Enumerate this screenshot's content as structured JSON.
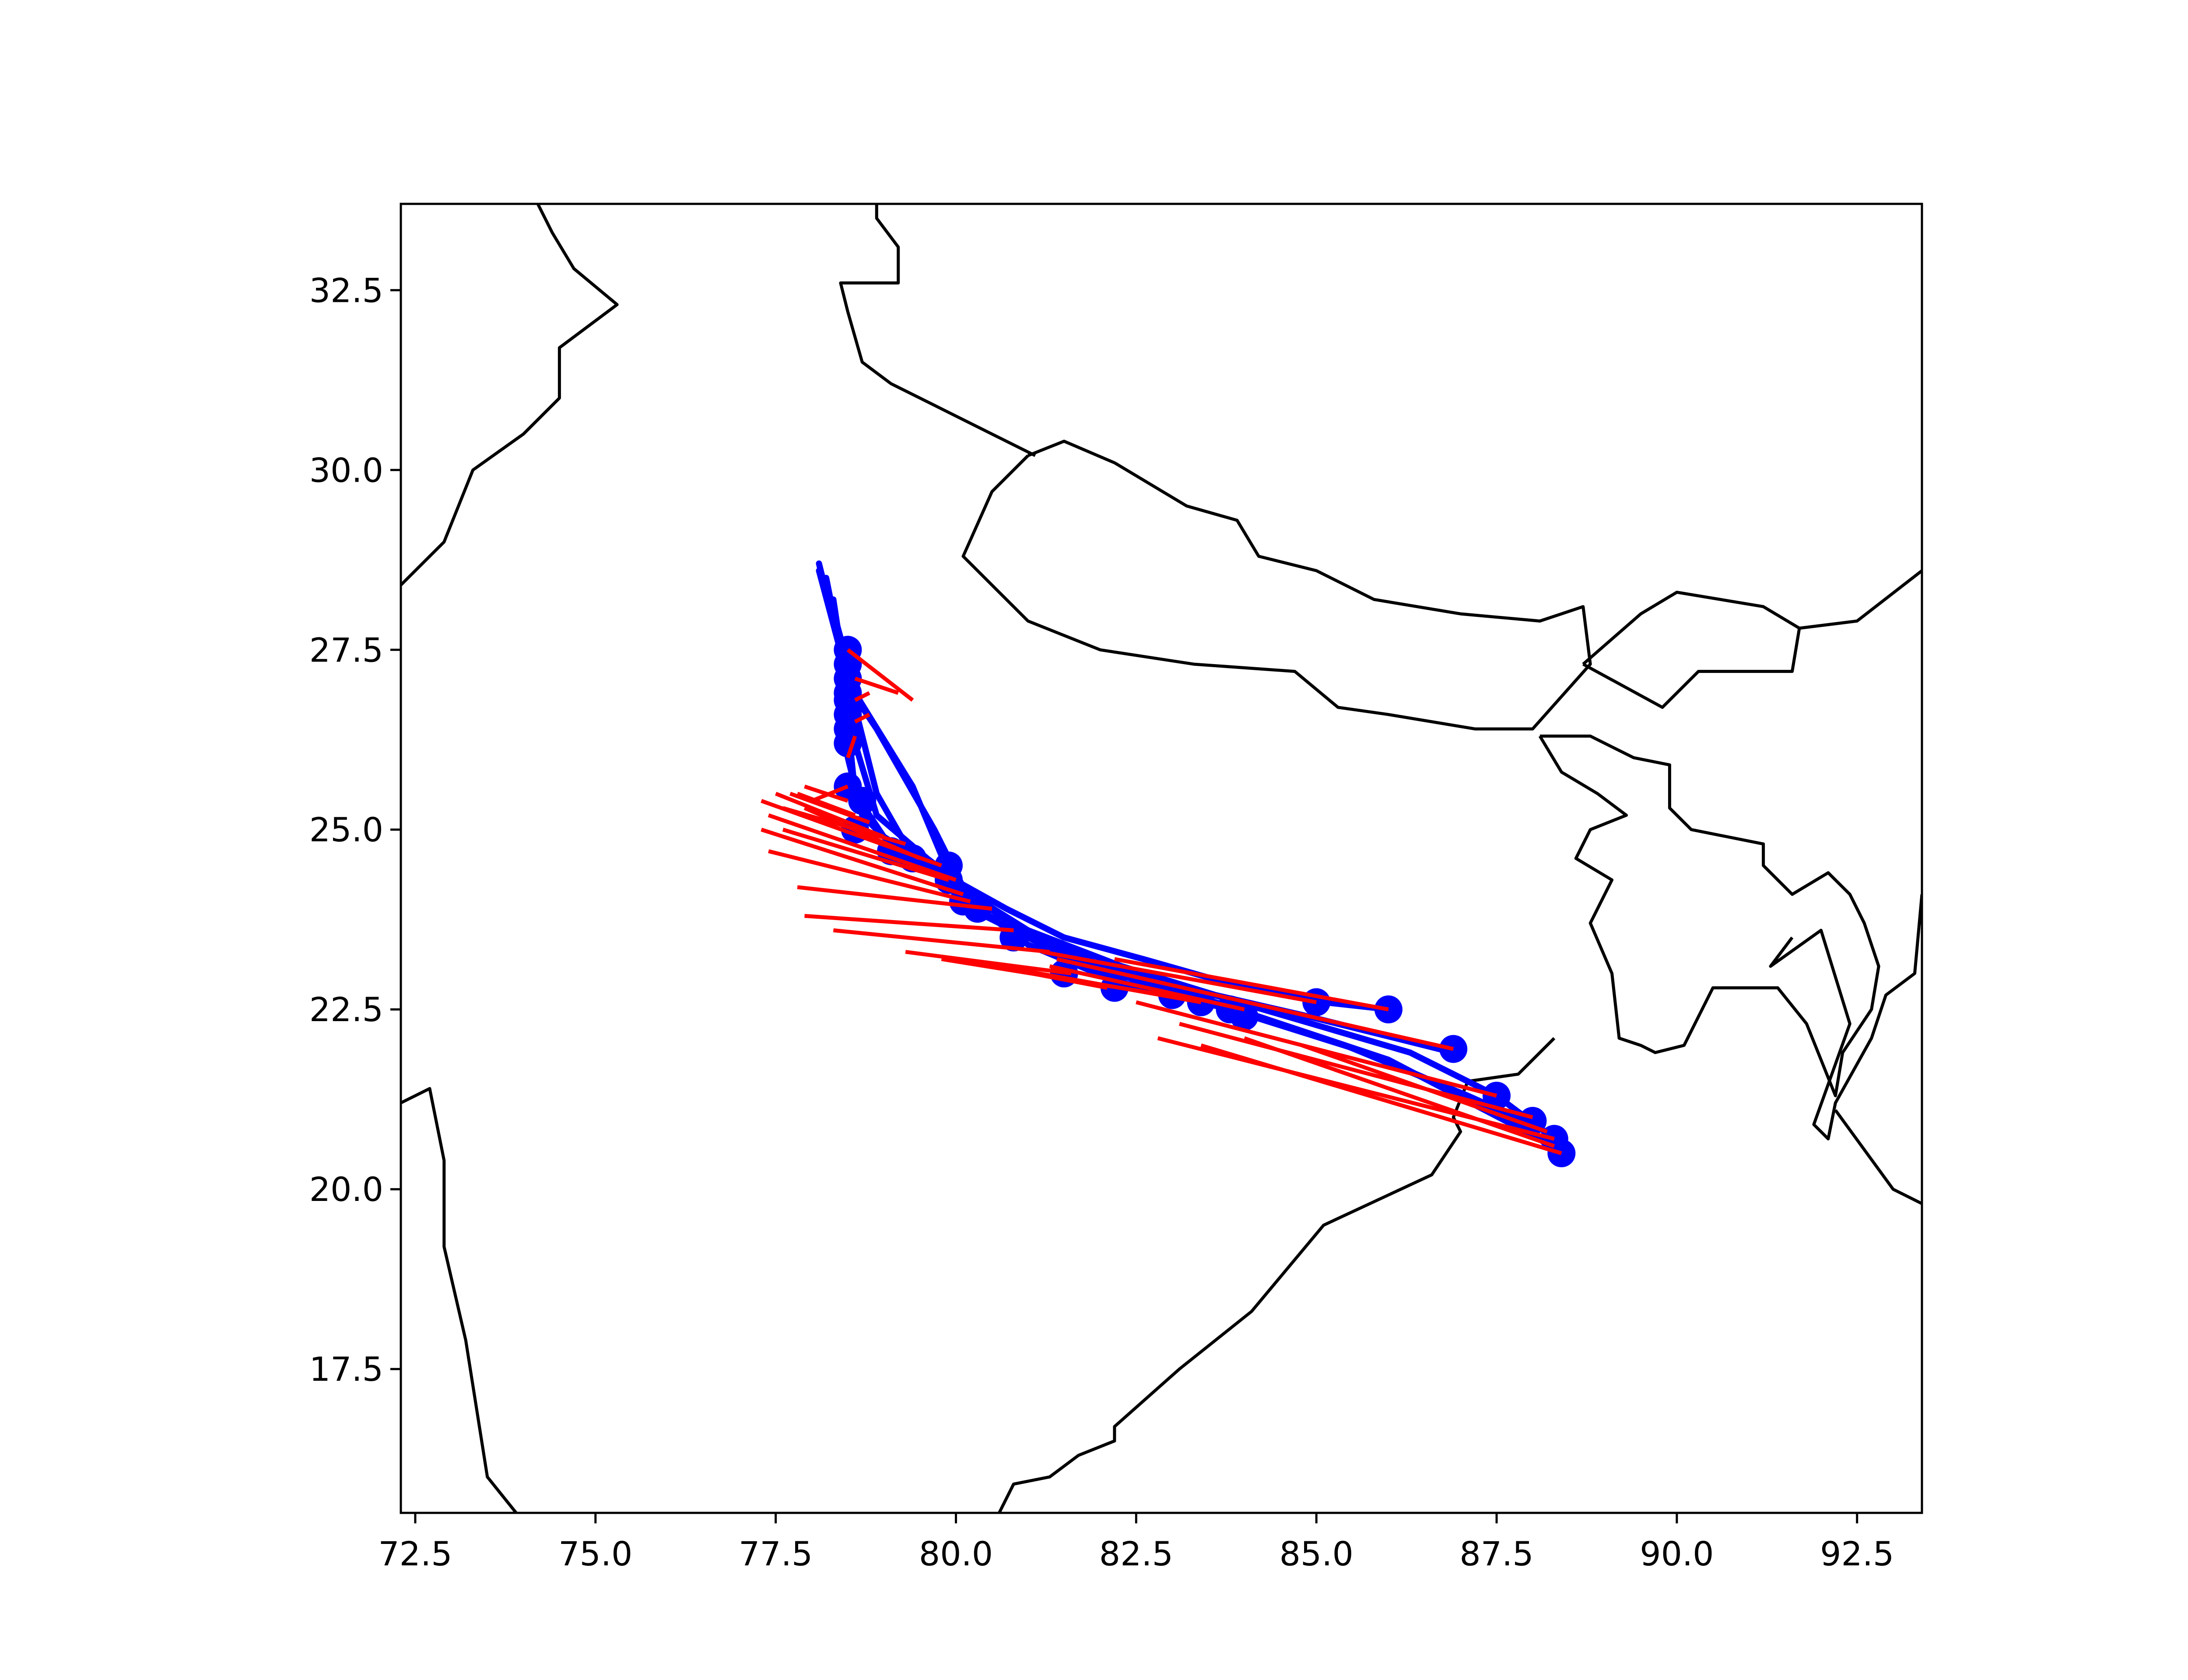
{
  "chart_data": {
    "type": "map-trajectories",
    "title": "",
    "xlabel": "",
    "ylabel": "",
    "xlim": [
      72.3,
      93.4
    ],
    "ylim": [
      15.5,
      33.7
    ],
    "grid": false,
    "legend": "none",
    "x_ticks": [
      "72.5",
      "75.0",
      "77.5",
      "80.0",
      "82.5",
      "85.0",
      "87.5",
      "90.0",
      "92.5"
    ],
    "x_tick_values": [
      72.5,
      75.0,
      77.5,
      80.0,
      82.5,
      85.0,
      87.5,
      90.0,
      92.5
    ],
    "y_ticks": [
      "17.5",
      "20.0",
      "22.5",
      "25.0",
      "27.5",
      "30.0",
      "32.5"
    ],
    "y_tick_values": [
      17.5,
      20.0,
      22.5,
      25.0,
      27.5,
      30.0,
      32.5
    ],
    "colors": {
      "frame": "#000000",
      "boundary": "#000000",
      "track": "#0000ff",
      "track_point": "#0000ff",
      "forecast": "#ff0000"
    },
    "boundaries": [
      [
        [
          74.2,
          33.7
        ],
        [
          74.4,
          33.3
        ],
        [
          74.7,
          32.8
        ],
        [
          75.3,
          32.3
        ],
        [
          74.5,
          31.7
        ],
        [
          74.5,
          31.0
        ],
        [
          74.0,
          30.5
        ],
        [
          73.3,
          30.0
        ],
        [
          72.9,
          29.0
        ],
        [
          72.3,
          28.4
        ]
      ],
      [
        [
          78.9,
          33.7
        ],
        [
          78.9,
          33.5
        ],
        [
          79.2,
          33.1
        ],
        [
          79.2,
          32.6
        ],
        [
          78.4,
          32.6
        ],
        [
          78.5,
          32.2
        ],
        [
          78.7,
          31.5
        ],
        [
          79.1,
          31.2
        ],
        [
          79.7,
          30.9
        ],
        [
          80.5,
          30.5
        ],
        [
          81.1,
          30.2
        ]
      ],
      [
        [
          81.0,
          30.2
        ],
        [
          81.5,
          30.4
        ],
        [
          82.2,
          30.1
        ],
        [
          83.2,
          29.5
        ],
        [
          83.9,
          29.3
        ],
        [
          84.2,
          28.8
        ],
        [
          85.0,
          28.6
        ],
        [
          85.8,
          28.2
        ],
        [
          87.0,
          28.0
        ],
        [
          88.1,
          27.9
        ],
        [
          88.7,
          28.1
        ],
        [
          88.8,
          27.3
        ],
        [
          88.0,
          26.4
        ],
        [
          87.2,
          26.4
        ],
        [
          86.0,
          26.6
        ],
        [
          85.3,
          26.7
        ],
        [
          84.7,
          27.2
        ],
        [
          83.3,
          27.3
        ],
        [
          82.0,
          27.5
        ],
        [
          81.0,
          27.9
        ],
        [
          80.1,
          28.8
        ],
        [
          80.5,
          29.7
        ],
        [
          81.0,
          30.2
        ]
      ],
      [
        [
          88.7,
          27.3
        ],
        [
          89.5,
          28.0
        ],
        [
          90.0,
          28.3
        ],
        [
          91.2,
          28.1
        ],
        [
          91.7,
          27.8
        ],
        [
          91.6,
          27.2
        ],
        [
          90.3,
          27.2
        ],
        [
          89.8,
          26.7
        ],
        [
          88.7,
          27.3
        ]
      ],
      [
        [
          91.7,
          27.8
        ],
        [
          92.5,
          27.9
        ],
        [
          93.4,
          28.6
        ]
      ],
      [
        [
          88.1,
          26.3
        ],
        [
          88.4,
          25.8
        ],
        [
          88.9,
          25.5
        ],
        [
          89.3,
          25.2
        ],
        [
          88.8,
          25.0
        ],
        [
          88.6,
          24.6
        ],
        [
          89.1,
          24.3
        ],
        [
          88.8,
          23.7
        ],
        [
          89.1,
          23.0
        ],
        [
          89.2,
          22.1
        ],
        [
          89.5,
          22.0
        ],
        [
          89.7,
          21.9
        ],
        [
          90.1,
          22.0
        ],
        [
          90.5,
          22.8
        ],
        [
          91.4,
          22.8
        ],
        [
          91.8,
          22.3
        ],
        [
          92.2,
          21.3
        ],
        [
          92.3,
          21.9
        ],
        [
          92.7,
          22.5
        ],
        [
          92.8,
          23.1
        ],
        [
          92.6,
          23.7
        ],
        [
          92.4,
          24.1
        ],
        [
          92.1,
          24.4
        ],
        [
          91.6,
          24.1
        ],
        [
          91.2,
          24.5
        ],
        [
          91.2,
          24.8
        ],
        [
          90.2,
          25.0
        ],
        [
          89.9,
          25.3
        ],
        [
          89.9,
          25.9
        ],
        [
          89.4,
          26.0
        ],
        [
          88.8,
          26.3
        ],
        [
          88.1,
          26.3
        ]
      ],
      [
        [
          93.4,
          24.1
        ],
        [
          93.3,
          23.0
        ],
        [
          92.9,
          22.7
        ],
        [
          92.7,
          22.1
        ],
        [
          92.2,
          21.2
        ],
        [
          92.1,
          20.7
        ],
        [
          91.9,
          20.9
        ],
        [
          92.4,
          22.3
        ],
        [
          92.0,
          23.6
        ],
        [
          91.3,
          23.1
        ],
        [
          91.6,
          23.5
        ]
      ],
      [
        [
          92.2,
          21.1
        ],
        [
          93.0,
          20.0
        ],
        [
          93.4,
          19.8
        ]
      ],
      [
        [
          72.3,
          21.2
        ],
        [
          72.7,
          21.4
        ],
        [
          72.9,
          20.4
        ],
        [
          72.9,
          19.2
        ],
        [
          73.2,
          17.9
        ],
        [
          73.5,
          16.0
        ],
        [
          73.9,
          15.5
        ]
      ],
      [
        [
          88.3,
          22.1
        ],
        [
          87.8,
          21.6
        ],
        [
          87.1,
          21.5
        ],
        [
          86.9,
          21.0
        ],
        [
          87.0,
          20.8
        ],
        [
          86.6,
          20.2
        ],
        [
          85.1,
          19.5
        ],
        [
          84.1,
          18.3
        ],
        [
          83.1,
          17.5
        ],
        [
          82.2,
          16.7
        ],
        [
          82.2,
          16.5
        ],
        [
          81.7,
          16.3
        ],
        [
          81.3,
          16.0
        ],
        [
          80.8,
          15.9
        ],
        [
          80.6,
          15.5
        ]
      ]
    ],
    "tracks": [
      [
        [
          78.1,
          28.7
        ],
        [
          78.4,
          27.5
        ],
        [
          78.5,
          26.5
        ],
        [
          78.6,
          25.5
        ],
        [
          79.0,
          24.9
        ],
        [
          79.8,
          24.4
        ],
        [
          80.7,
          23.9
        ],
        [
          81.5,
          23.5
        ],
        [
          82.6,
          23.2
        ],
        [
          84.0,
          22.8
        ],
        [
          85.1,
          22.6
        ],
        [
          86.0,
          22.5
        ]
      ],
      [
        [
          78.1,
          28.6
        ],
        [
          78.5,
          27.1
        ],
        [
          78.5,
          26.0
        ],
        [
          78.7,
          25.2
        ],
        [
          79.2,
          24.7
        ],
        [
          80.2,
          24.1
        ],
        [
          81.0,
          23.6
        ],
        [
          82.3,
          23.1
        ],
        [
          83.6,
          22.7
        ],
        [
          84.9,
          22.4
        ],
        [
          86.9,
          21.9
        ]
      ],
      [
        [
          78.2,
          28.4
        ],
        [
          78.5,
          27.3
        ],
        [
          78.6,
          26.9
        ],
        [
          79.4,
          25.6
        ],
        [
          79.9,
          24.4
        ],
        [
          80.6,
          23.8
        ],
        [
          81.6,
          23.2
        ],
        [
          82.9,
          22.9
        ],
        [
          84.6,
          22.4
        ],
        [
          86.3,
          21.9
        ],
        [
          87.5,
          21.3
        ],
        [
          88.3,
          20.7
        ]
      ],
      [
        [
          78.2,
          28.5
        ],
        [
          78.5,
          27.0
        ],
        [
          78.9,
          26.4
        ],
        [
          79.7,
          25.0
        ],
        [
          80.2,
          24.0
        ],
        [
          81.0,
          23.4
        ],
        [
          82.2,
          22.9
        ],
        [
          83.8,
          22.5
        ],
        [
          85.7,
          21.9
        ],
        [
          87.3,
          21.2
        ],
        [
          88.4,
          20.5
        ]
      ],
      [
        [
          78.2,
          28.3
        ],
        [
          78.6,
          26.7
        ],
        [
          78.9,
          25.5
        ],
        [
          79.3,
          24.8
        ],
        [
          80.4,
          23.8
        ],
        [
          81.8,
          23.1
        ],
        [
          83.3,
          22.7
        ],
        [
          85.4,
          22.0
        ],
        [
          87.1,
          21.3
        ],
        [
          88.0,
          20.9
        ]
      ],
      [
        [
          78.3,
          28.2
        ],
        [
          78.6,
          26.2
        ],
        [
          78.9,
          25.2
        ],
        [
          79.6,
          24.6
        ],
        [
          80.9,
          23.6
        ],
        [
          82.5,
          22.9
        ],
        [
          84.2,
          22.4
        ],
        [
          86.0,
          21.8
        ],
        [
          88.1,
          20.7
        ]
      ]
    ],
    "track_points": [
      [
        78.5,
        27.5
      ],
      [
        78.5,
        27.3
      ],
      [
        78.5,
        27.1
      ],
      [
        78.5,
        26.9
      ],
      [
        78.5,
        26.8
      ],
      [
        78.5,
        26.6
      ],
      [
        78.5,
        26.4
      ],
      [
        78.5,
        26.2
      ],
      [
        78.5,
        25.6
      ],
      [
        78.7,
        25.4
      ],
      [
        78.6,
        25.0
      ],
      [
        79.1,
        24.7
      ],
      [
        79.4,
        24.6
      ],
      [
        79.9,
        24.5
      ],
      [
        79.9,
        24.3
      ],
      [
        80.1,
        24.0
      ],
      [
        80.3,
        23.9
      ],
      [
        80.8,
        23.5
      ],
      [
        81.5,
        23.0
      ],
      [
        82.2,
        22.8
      ],
      [
        83.0,
        22.7
      ],
      [
        83.4,
        22.6
      ],
      [
        83.8,
        22.5
      ],
      [
        84.0,
        22.4
      ],
      [
        85.0,
        22.6
      ],
      [
        86.0,
        22.5
      ],
      [
        86.9,
        21.95
      ],
      [
        87.5,
        21.3
      ],
      [
        88.0,
        20.95
      ],
      [
        88.3,
        20.7
      ],
      [
        88.4,
        20.5
      ]
    ],
    "forecasts": [
      [
        [
          78.5,
          27.5
        ],
        [
          79.4,
          26.8
        ]
      ],
      [
        [
          78.6,
          27.1
        ],
        [
          79.2,
          26.9
        ]
      ],
      [
        [
          78.6,
          26.8
        ],
        [
          78.8,
          26.9
        ]
      ],
      [
        [
          78.6,
          26.5
        ],
        [
          78.8,
          26.6
        ]
      ],
      [
        [
          78.5,
          26.0
        ],
        [
          78.6,
          26.3
        ]
      ],
      [
        [
          78.5,
          25.6
        ],
        [
          78.0,
          25.4
        ]
      ],
      [
        [
          78.5,
          25.4
        ],
        [
          77.9,
          25.6
        ]
      ],
      [
        [
          78.6,
          25.2
        ],
        [
          77.8,
          25.5
        ]
      ],
      [
        [
          78.8,
          25.1
        ],
        [
          77.7,
          25.5
        ]
      ],
      [
        [
          79.0,
          24.9
        ],
        [
          77.5,
          25.5
        ]
      ],
      [
        [
          79.3,
          24.8
        ],
        [
          77.6,
          25.3
        ]
      ],
      [
        [
          79.5,
          24.6
        ],
        [
          77.9,
          25.3
        ]
      ],
      [
        [
          79.8,
          24.5
        ],
        [
          77.3,
          25.4
        ]
      ],
      [
        [
          80.0,
          24.3
        ],
        [
          77.4,
          25.2
        ]
      ],
      [
        [
          79.9,
          24.3
        ],
        [
          77.6,
          25.0
        ]
      ],
      [
        [
          80.1,
          24.1
        ],
        [
          77.3,
          25.0
        ]
      ],
      [
        [
          80.2,
          24.0
        ],
        [
          77.4,
          24.7
        ]
      ],
      [
        [
          80.5,
          23.9
        ],
        [
          77.8,
          24.2
        ]
      ],
      [
        [
          80.8,
          23.6
        ],
        [
          77.9,
          23.8
        ]
      ],
      [
        [
          81.3,
          23.3
        ],
        [
          78.3,
          23.6
        ]
      ],
      [
        [
          81.6,
          23.0
        ],
        [
          79.3,
          23.3
        ]
      ],
      [
        [
          82.1,
          22.8
        ],
        [
          80.0,
          23.2
        ]
      ],
      [
        [
          82.9,
          22.7
        ],
        [
          79.8,
          23.2
        ]
      ],
      [
        [
          83.4,
          22.6
        ],
        [
          80.6,
          23.1
        ]
      ],
      [
        [
          84.0,
          22.5
        ],
        [
          81.3,
          23.1
        ]
      ],
      [
        [
          85.0,
          22.6
        ],
        [
          81.2,
          23.3
        ]
      ],
      [
        [
          86.0,
          22.5
        ],
        [
          82.2,
          23.2
        ]
      ],
      [
        [
          86.9,
          21.95
        ],
        [
          81.4,
          23.2
        ]
      ],
      [
        [
          87.5,
          21.3
        ],
        [
          82.5,
          22.6
        ]
      ],
      [
        [
          88.0,
          21.0
        ],
        [
          83.1,
          22.3
        ]
      ],
      [
        [
          88.3,
          20.7
        ],
        [
          82.8,
          22.1
        ]
      ],
      [
        [
          88.4,
          20.5
        ],
        [
          83.4,
          22.0
        ]
      ],
      [
        [
          88.3,
          20.6
        ],
        [
          84.0,
          22.1
        ]
      ],
      [
        [
          88.2,
          20.8
        ],
        [
          84.8,
          22.0
        ]
      ]
    ]
  }
}
